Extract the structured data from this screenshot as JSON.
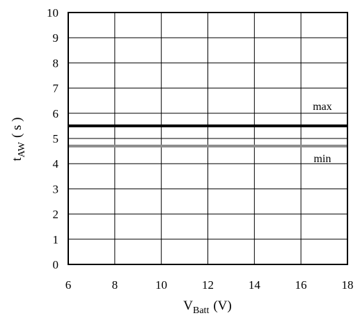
{
  "chart_data": {
    "type": "line",
    "x_range": [
      6,
      18
    ],
    "y_range": [
      0,
      10
    ],
    "x_ticks": [
      6,
      8,
      10,
      12,
      14,
      16,
      18
    ],
    "y_ticks": [
      0,
      1,
      2,
      3,
      4,
      5,
      6,
      7,
      8,
      9,
      10
    ],
    "grid": true,
    "xlabel": {
      "main": "V",
      "sub": "Batt",
      "unit": "(V)"
    },
    "ylabel": {
      "main": "t",
      "sub": "AW",
      "unit": "( s )"
    },
    "series": [
      {
        "name": "max",
        "x": [
          6,
          18
        ],
        "y": [
          5.5,
          5.5
        ],
        "color": "#000000"
      },
      {
        "name": "min",
        "x": [
          6,
          18
        ],
        "y": [
          4.7,
          4.7
        ],
        "color": "#8c8c8c"
      }
    ]
  }
}
